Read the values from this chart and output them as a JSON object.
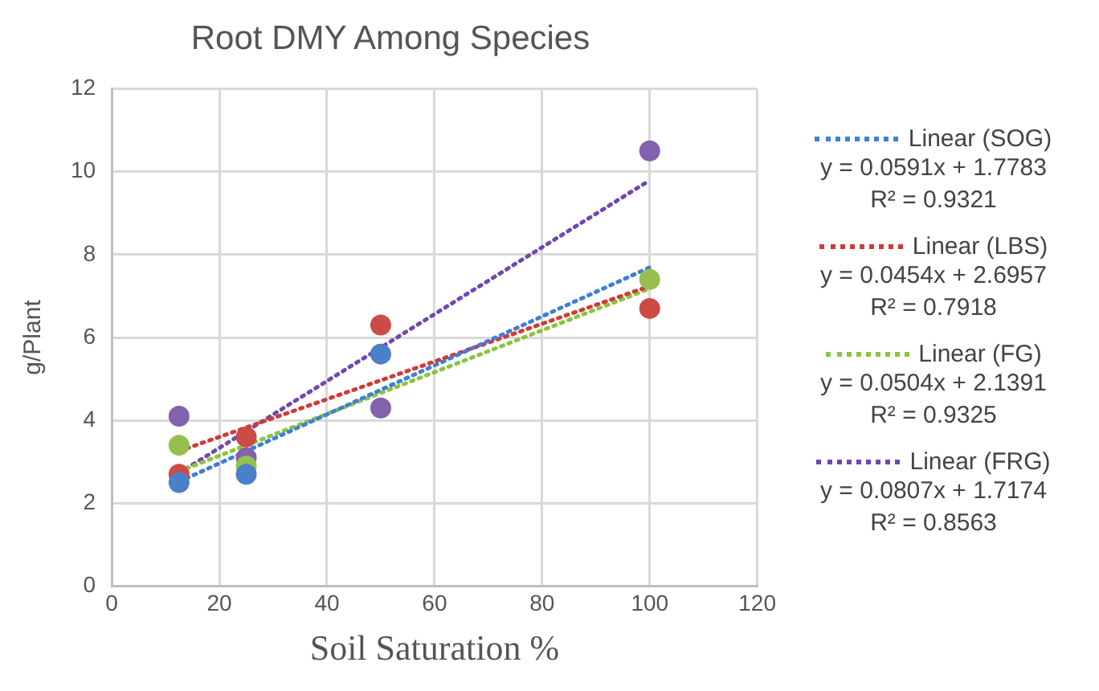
{
  "chart_data": {
    "type": "scatter",
    "title": "Root DMY Among Species",
    "xlabel": "Soil Saturation %",
    "ylabel": "g/Plant",
    "xlim": [
      0,
      120
    ],
    "xticks": [
      0,
      20,
      40,
      60,
      80,
      100,
      120
    ],
    "ylim": [
      0,
      12
    ],
    "yticks": [
      0,
      2,
      4,
      6,
      8,
      10,
      12
    ],
    "grid": true,
    "legend": "right",
    "series": [
      {
        "type": "scatter",
        "marker": "circle",
        "color": "#4a7fc9",
        "x": [
          12.5,
          25,
          50
        ],
        "values": [
          2.5,
          2.7,
          5.6
        ]
      },
      {
        "type": "scatter",
        "marker": "circle",
        "color": "#cc4b45",
        "x": [
          12.5,
          25,
          50,
          100
        ],
        "values": [
          2.7,
          3.6,
          6.3,
          6.7
        ]
      },
      {
        "type": "scatter",
        "marker": "circle",
        "color": "#96bf4f",
        "x": [
          12.5,
          25,
          100
        ],
        "values": [
          3.4,
          2.9,
          7.4
        ]
      },
      {
        "type": "scatter",
        "marker": "circle",
        "color": "#8162ad",
        "x": [
          12.5,
          25,
          50,
          100
        ],
        "values": [
          4.1,
          3.1,
          4.3,
          10.5
        ]
      },
      {
        "type": "line",
        "name": "Linear (SOG)",
        "marker": "none",
        "line_style": "dotted",
        "color": "#3f7fd6",
        "x": [
          12.5,
          100
        ],
        "values": [
          2.52,
          7.69
        ]
      },
      {
        "type": "line",
        "name": "Linear (LBS)",
        "marker": "none",
        "line_style": "dotted",
        "color": "#d23a35",
        "x": [
          12.5,
          100
        ],
        "values": [
          3.26,
          7.24
        ]
      },
      {
        "type": "line",
        "name": "Linear (FG)",
        "marker": "none",
        "line_style": "dotted",
        "color": "#8cc43f",
        "x": [
          12.5,
          100
        ],
        "values": [
          2.77,
          7.18
        ]
      },
      {
        "type": "line",
        "name": "Linear (FRG)",
        "marker": "none",
        "line_style": "dotted",
        "color": "#7048b0",
        "x": [
          12.5,
          100
        ],
        "values": [
          2.73,
          9.79
        ]
      }
    ],
    "annotations": [
      "y = 0.0591x + 1.7783",
      "R² = 0.9321",
      "y = 0.0454x + 2.6957",
      "R² = 0.7918",
      "y = 0.0504x + 2.1391",
      "R² = 0.9325",
      "y = 0.0807x + 1.7174",
      "R² = 0.8563"
    ]
  }
}
